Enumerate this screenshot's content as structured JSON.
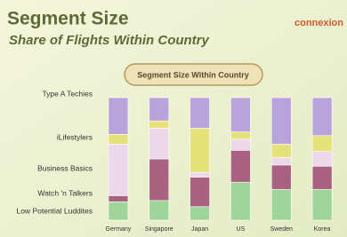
{
  "header": {
    "title": "Segment Size",
    "subtitle": "Share of Flights Within Country",
    "logo": "connexion",
    "button": "Segment Size Within Country"
  },
  "chart_data": {
    "type": "stacked-bar",
    "categories": [
      "Germany",
      "Singapore",
      "Japan",
      "US",
      "Sweden",
      "Korea"
    ],
    "ylim": [
      0,
      100
    ],
    "series": [
      {
        "name": "Low Potential Luddites",
        "color": "#9fd49a",
        "values": [
          15,
          16,
          11,
          31,
          25,
          25
        ]
      },
      {
        "name": "Watch 'n Talkers",
        "color": "#a8627f",
        "values": [
          5,
          34,
          24,
          26,
          20,
          19
        ]
      },
      {
        "name": "Business Basics",
        "color": "#ecd8ea",
        "values": [
          42,
          25,
          4,
          9,
          6,
          12
        ]
      },
      {
        "name": "iLifestylers",
        "color": "#e6e27a",
        "values": [
          8,
          6,
          36,
          6,
          11,
          13
        ]
      },
      {
        "name": "Type A Techies",
        "color": "#b8a4da",
        "values": [
          30,
          19,
          25,
          28,
          38,
          31
        ]
      }
    ]
  }
}
